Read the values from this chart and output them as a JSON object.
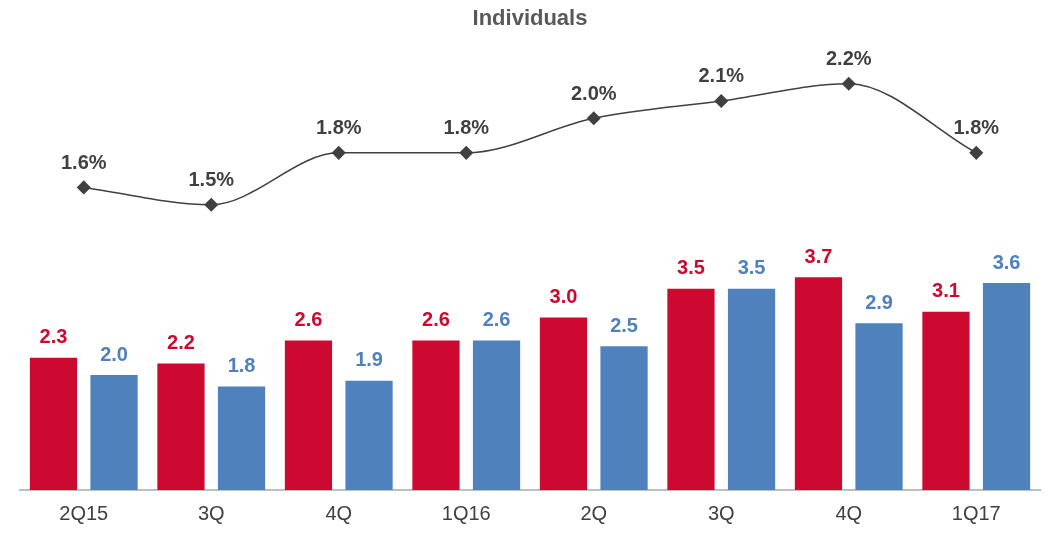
{
  "chart_data": [
    {
      "type": "line",
      "title": "Individuals",
      "categories": [
        null,
        null,
        null,
        null,
        null,
        null,
        null,
        null
      ],
      "series": [
        {
          "color": "#404040",
          "values": [
            1.6,
            1.5,
            1.8,
            1.8,
            2.0,
            2.1,
            2.2,
            1.8
          ],
          "value_labels": [
            "1.6%",
            "1.5%",
            "1.8%",
            "1.8%",
            "2.0%",
            "2.1%",
            "2.2%",
            "1.8%"
          ]
        }
      ],
      "tick_labels": false,
      "grid": false,
      "legend": false,
      "marker": "diamond"
    },
    {
      "type": "bar",
      "categories": [
        "2Q15",
        "3Q",
        "4Q",
        "1Q16",
        "2Q",
        "3Q",
        "4Q",
        "1Q17"
      ],
      "series": [
        {
          "color": "#cc0a2f",
          "values": [
            2.3,
            2.2,
            2.6,
            2.6,
            3.0,
            3.5,
            3.7,
            3.1
          ],
          "value_labels": [
            "2.3",
            "2.2",
            "2.6",
            "2.6",
            "3.0",
            "3.5",
            "3.7",
            "3.1"
          ]
        },
        {
          "color": "#4f81bd",
          "values": [
            2.0,
            1.8,
            1.9,
            2.6,
            2.5,
            3.5,
            2.9,
            3.6
          ],
          "value_labels": [
            "2.0",
            "1.8",
            "1.9",
            "2.6",
            "2.5",
            "3.5",
            "2.9",
            "3.6"
          ]
        }
      ],
      "tick_labels": "x",
      "grid": false,
      "legend": false
    }
  ]
}
